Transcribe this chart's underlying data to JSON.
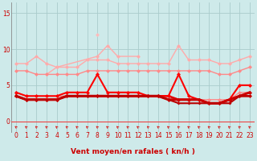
{
  "background_color": "#ceeaea",
  "grid_color": "#aacccc",
  "xlabel": "Vent moyen/en rafales ( kn/h )",
  "yticks": [
    0,
    5,
    10,
    15
  ],
  "ylim": [
    -1.5,
    16.5
  ],
  "xlim": [
    -0.5,
    23.5
  ],
  "series": [
    {
      "name": "gust_upper",
      "color": "#ffaaaa",
      "lw": 1.0,
      "markersize": 2.5,
      "values": [
        8.0,
        8.0,
        9.0,
        8.0,
        7.5,
        7.5,
        7.5,
        8.5,
        8.5,
        8.5,
        8.0,
        8.0,
        8.0,
        8.0,
        8.0,
        8.0,
        10.5,
        8.5,
        8.5,
        8.5,
        8.0,
        8.0,
        8.5,
        9.0
      ]
    },
    {
      "name": "gust_zigzag",
      "color": "#ffaaaa",
      "lw": 1.0,
      "markersize": 2.5,
      "values": [
        null,
        null,
        null,
        6.5,
        7.5,
        null,
        null,
        null,
        9.0,
        10.5,
        9.0,
        null,
        9.0,
        null,
        null,
        null,
        null,
        null,
        null,
        null,
        null,
        null,
        null,
        null
      ]
    },
    {
      "name": "gust_spike",
      "color": "#ffbbbb",
      "lw": 1.0,
      "markersize": 2.5,
      "values": [
        null,
        null,
        null,
        null,
        null,
        null,
        null,
        null,
        12.0,
        null,
        null,
        null,
        null,
        null,
        null,
        null,
        null,
        null,
        null,
        null,
        null,
        null,
        null,
        null
      ]
    },
    {
      "name": "mean_upper",
      "color": "#ff8888",
      "lw": 1.0,
      "markersize": 2.5,
      "values": [
        7.0,
        7.0,
        6.5,
        6.5,
        6.5,
        6.5,
        6.5,
        7.0,
        7.0,
        7.0,
        7.0,
        7.0,
        7.0,
        7.0,
        7.0,
        7.0,
        7.0,
        7.0,
        7.0,
        7.0,
        6.5,
        6.5,
        7.0,
        7.5
      ]
    },
    {
      "name": "mean_lower",
      "color": "#ff8888",
      "lw": 1.0,
      "markersize": 2.5,
      "values": [
        4.0,
        3.5,
        3.5,
        3.5,
        3.5,
        3.5,
        3.5,
        3.5,
        3.5,
        3.5,
        3.5,
        3.5,
        3.5,
        3.5,
        3.5,
        3.5,
        3.0,
        3.0,
        3.0,
        3.0,
        3.0,
        3.0,
        4.0,
        4.0
      ]
    },
    {
      "name": "wind_flat1",
      "color": "#dd0000",
      "lw": 1.8,
      "markersize": 2.5,
      "values": [
        3.5,
        3.0,
        3.0,
        3.0,
        3.0,
        3.5,
        3.5,
        3.5,
        3.5,
        3.5,
        3.5,
        3.5,
        3.5,
        3.5,
        3.5,
        3.5,
        3.0,
        3.0,
        3.0,
        2.5,
        2.5,
        3.0,
        3.5,
        3.5
      ]
    },
    {
      "name": "wind_spike",
      "color": "#ff0000",
      "lw": 1.5,
      "markersize": 2.5,
      "values": [
        4.0,
        3.5,
        3.5,
        3.5,
        3.5,
        4.0,
        4.0,
        4.0,
        6.5,
        4.0,
        4.0,
        4.0,
        4.0,
        3.5,
        3.5,
        3.5,
        6.5,
        3.5,
        3.0,
        2.5,
        2.5,
        3.0,
        5.0,
        5.0
      ]
    },
    {
      "name": "wind_flat2",
      "color": "#cc0000",
      "lw": 2.2,
      "markersize": 2.5,
      "values": [
        3.5,
        3.0,
        3.0,
        3.0,
        3.0,
        3.5,
        3.5,
        3.5,
        3.5,
        3.5,
        3.5,
        3.5,
        3.5,
        3.5,
        3.5,
        3.0,
        3.0,
        3.0,
        3.0,
        2.5,
        2.5,
        3.0,
        3.5,
        4.0
      ]
    },
    {
      "name": "wind_bottom",
      "color": "#bb0000",
      "lw": 1.5,
      "markersize": 2.0,
      "values": [
        3.5,
        3.0,
        3.0,
        3.0,
        3.0,
        3.5,
        3.5,
        3.5,
        3.5,
        3.5,
        3.5,
        3.5,
        3.5,
        3.5,
        3.5,
        3.0,
        2.5,
        2.5,
        2.5,
        2.5,
        2.5,
        2.5,
        3.5,
        3.5
      ]
    }
  ],
  "x_labels": [
    "0",
    "1",
    "2",
    "3",
    "4",
    "5",
    "6",
    "7",
    "8",
    "9",
    "10",
    "11",
    "12",
    "13",
    "14",
    "15",
    "16",
    "17",
    "18",
    "19",
    "20",
    "21",
    "22",
    "23"
  ],
  "tick_fontsize": 5.5,
  "xlabel_fontsize": 6.5,
  "xlabel_color": "#cc0000",
  "tick_color": "#cc0000",
  "arrow_color": "#dd2222",
  "hline_color": "#ee4444",
  "hline_y": 0.0
}
